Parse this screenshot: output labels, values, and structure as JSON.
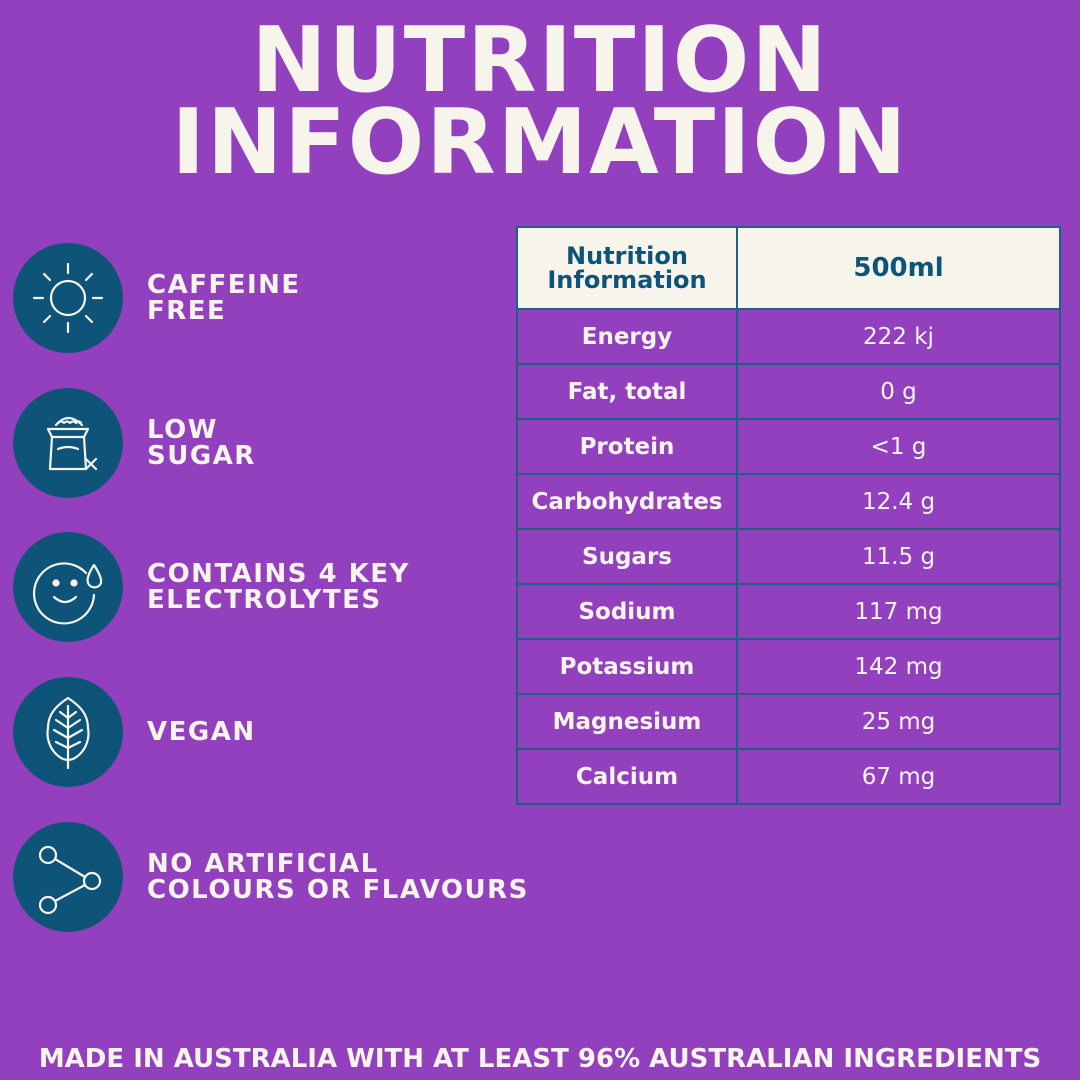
{
  "header": {
    "title_line1": "NUTRITION",
    "title_line2": "INFORMATION"
  },
  "features": [
    {
      "label": "CAFFEINE\nFREE",
      "icon": "sun-icon"
    },
    {
      "label": "LOW\nSUGAR",
      "icon": "sugar-bag-icon"
    },
    {
      "label": "CONTAINS 4 KEY\nELECTROLYTES",
      "icon": "smiley-droplet-icon"
    },
    {
      "label": "VEGAN",
      "icon": "leaf-icon"
    },
    {
      "label": "NO ARTIFICIAL\nCOLOURS OR FLAVOURS",
      "icon": "molecule-icon"
    }
  ],
  "nutrition_table": {
    "header_col1": "Nutrition\nInformation",
    "header_col2": "500ml",
    "rows": [
      {
        "nutrient": "Energy",
        "value": "222 kj"
      },
      {
        "nutrient": "Fat, total",
        "value": "0 g"
      },
      {
        "nutrient": "Protein",
        "value": "<1 g"
      },
      {
        "nutrient": "Carbohydrates",
        "value": "12.4 g"
      },
      {
        "nutrient": "Sugars",
        "value": "11.5 g"
      },
      {
        "nutrient": "Sodium",
        "value": "117 mg"
      },
      {
        "nutrient": "Potassium",
        "value": "142 mg"
      },
      {
        "nutrient": "Magnesium",
        "value": "25 mg"
      },
      {
        "nutrient": "Calcium",
        "value": "67 mg"
      }
    ]
  },
  "footer": {
    "text": "MADE IN AUSTRALIA WITH AT LEAST 96% AUSTRALIAN INGREDIENTS"
  },
  "colors": {
    "background": "#9340BE",
    "badge": "#0E5478",
    "cream": "#F7F4EC",
    "table_border": "#1E5F86"
  }
}
